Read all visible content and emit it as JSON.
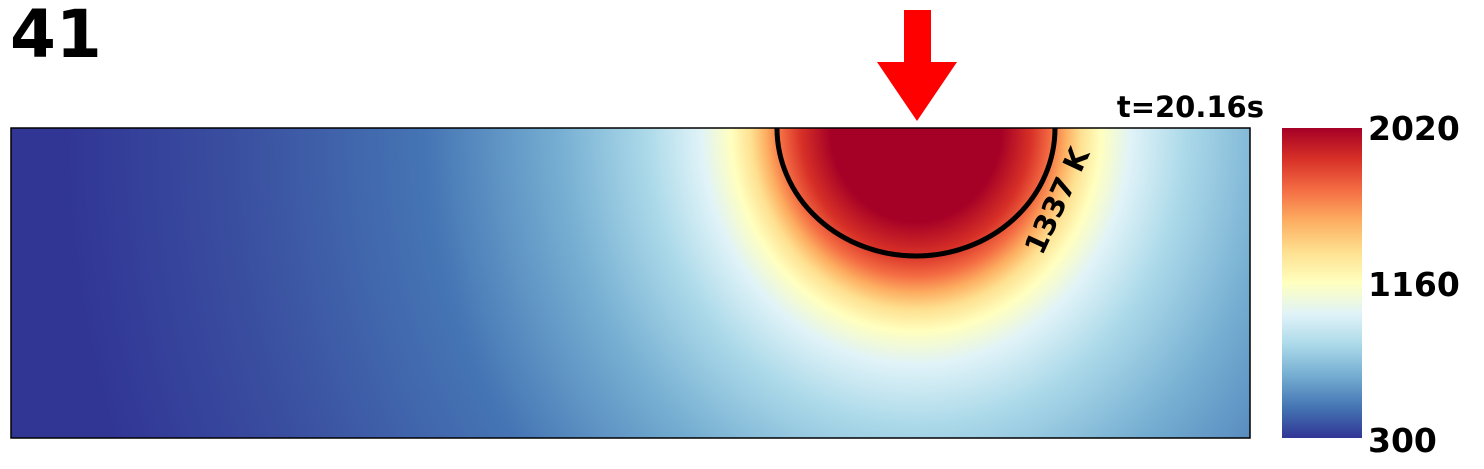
{
  "frame": {
    "number": "41"
  },
  "time": {
    "label": "t=20.16s"
  },
  "colors": {
    "heat_source_arrow": "#ff0000",
    "contour_line": "#000000",
    "colormap": [
      "#313695",
      "#4575b4",
      "#74add1",
      "#abd9e9",
      "#e0f3f8",
      "#ffffbf",
      "#fee090",
      "#fdae61",
      "#f46d43",
      "#d73027",
      "#a50026"
    ]
  },
  "chart_data": {
    "type": "heatmap",
    "colormap": "RdYlBu_r",
    "colorbar": {
      "min": 300,
      "max": 2020,
      "ticks": [
        {
          "value": 2020,
          "label": "2020"
        },
        {
          "value": 1160,
          "label": "1160"
        },
        {
          "value": 300,
          "label": "300"
        }
      ]
    },
    "contours": [
      {
        "value": 1337,
        "label": "1337 K"
      }
    ],
    "annotations": [
      {
        "type": "arrow",
        "direction": "down",
        "description": "heat source"
      }
    ],
    "grid": false,
    "legend": "none"
  }
}
